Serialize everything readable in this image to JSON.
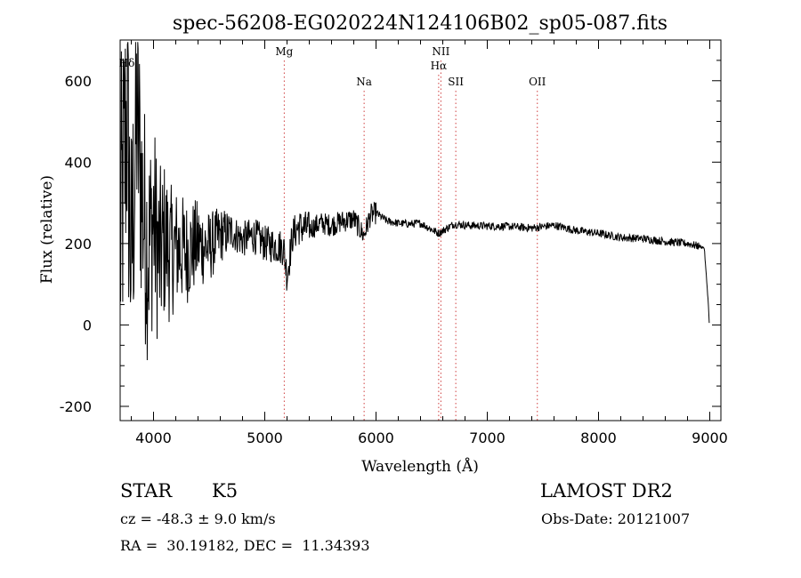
{
  "chart_data": {
    "type": "line",
    "title": "spec-56208-EG020224N124106B02_sp05-087.fits",
    "xlabel": "Wavelength (Å)",
    "ylabel": "Flux (relative)",
    "xlim": [
      3700,
      9100
    ],
    "ylim": [
      -235,
      700
    ],
    "x_ticks": [
      "4000",
      "5000",
      "6000",
      "7000",
      "8000",
      "9000"
    ],
    "y_ticks": [
      "-200",
      "0",
      "200",
      "400",
      "600"
    ],
    "grid": false,
    "series": [
      {
        "color": "#000000",
        "x": [
          3700,
          3760,
          3800,
          3850,
          3900,
          3950,
          4000,
          4050,
          4100,
          4150,
          4200,
          4300,
          4400,
          4500,
          4600,
          4700,
          4800,
          4900,
          5000,
          5100,
          5170,
          5200,
          5250,
          5300,
          5400,
          5500,
          5600,
          5700,
          5800,
          5890,
          5950,
          6000,
          6100,
          6200,
          6300,
          6400,
          6563,
          6700,
          6800,
          7000,
          7200,
          7400,
          7600,
          7800,
          8000,
          8200,
          8400,
          8600,
          8800,
          8950,
          9000
        ],
        "y": [
          200,
          520,
          150,
          520,
          300,
          180,
          260,
          160,
          210,
          175,
          190,
          180,
          200,
          190,
          220,
          230,
          210,
          220,
          200,
          195,
          190,
          120,
          220,
          240,
          235,
          250,
          245,
          255,
          260,
          220,
          270,
          275,
          255,
          250,
          248,
          250,
          225,
          248,
          245,
          243,
          242,
          238,
          245,
          232,
          225,
          215,
          212,
          205,
          200,
          190,
          5
        ]
      }
    ],
    "lines": [
      {
        "name": "Hδ",
        "x": 3760
      },
      {
        "name": "Mg",
        "x": 5175
      },
      {
        "name": "Na",
        "x": 5893
      },
      {
        "name": "NII",
        "x": 6583
      },
      {
        "name": "Hα",
        "x": 6563
      },
      {
        "name": "SII",
        "x": 6717
      },
      {
        "name": "OII",
        "x": 7450
      }
    ]
  },
  "footer": {
    "class_label": "STAR",
    "subclass": "K5",
    "survey": "LAMOST DR2",
    "cz": "cz = -48.3 ± 9.0 km/s",
    "obs_date": "Obs-Date: 20121007",
    "radec": "RA =  30.19182, DEC =  11.34393"
  },
  "colors": {
    "line_marker": "#d04040",
    "spectrum": "#000000"
  }
}
